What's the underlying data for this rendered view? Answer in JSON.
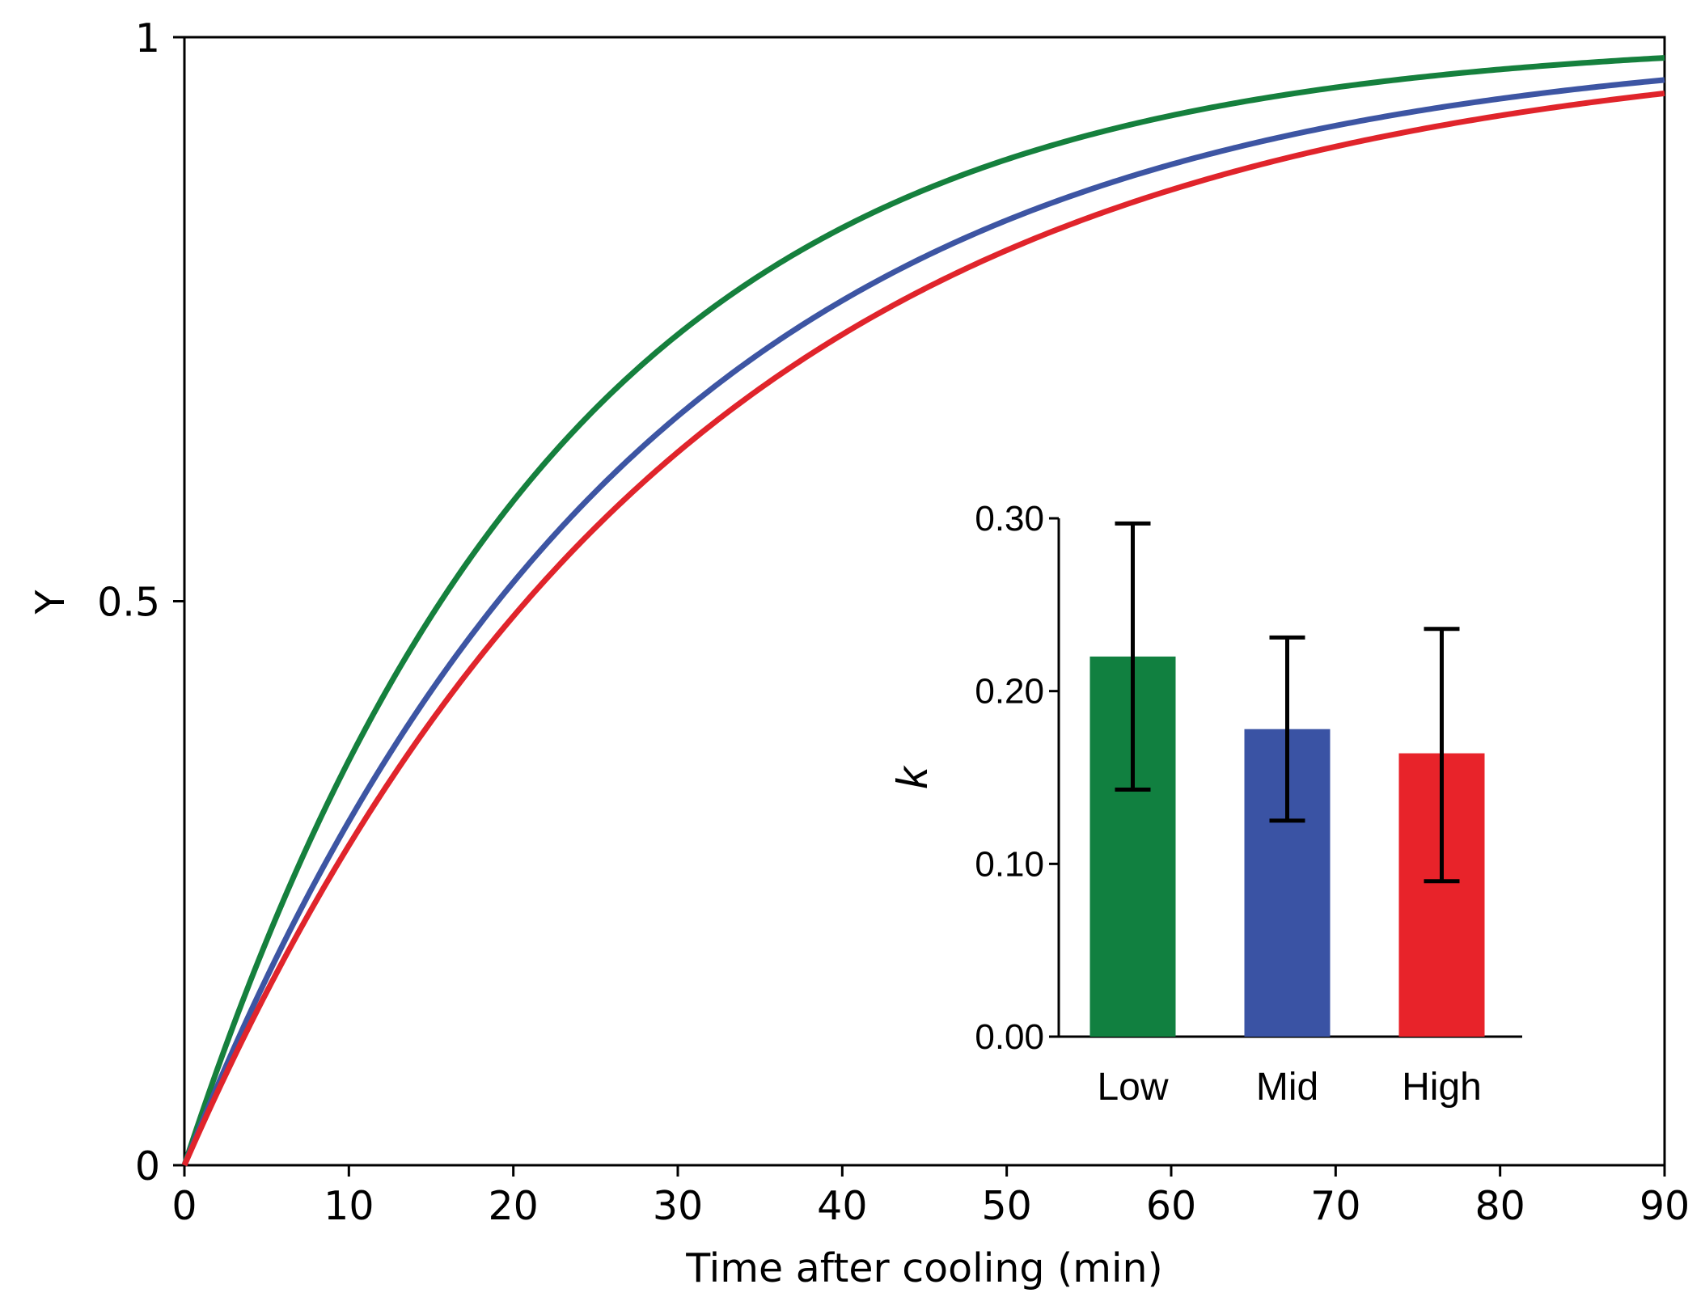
{
  "chart_data": [
    {
      "type": "line",
      "title": "",
      "xlabel": "Time after cooling (min)",
      "ylabel": "Y",
      "xlim": [
        0,
        90
      ],
      "ylim": [
        0,
        1
      ],
      "x_ticks": [
        0,
        10,
        20,
        30,
        40,
        50,
        60,
        70,
        80,
        90
      ],
      "x_tick_labels": [
        "0",
        "10",
        "20",
        "30",
        "40",
        "50",
        "60",
        "70",
        "80",
        "90"
      ],
      "y_ticks": [
        0,
        0.5,
        1
      ],
      "y_tick_labels": [
        "0",
        "0.5",
        "1"
      ],
      "grid": false,
      "model": "1 - exp(-t / tau)",
      "series": [
        {
          "name": "Low",
          "color": "#15803d",
          "tau_min": 22.5
        },
        {
          "name": "Mid",
          "color": "#3d55a3",
          "tau_min": 27.5
        },
        {
          "name": "High",
          "color": "#e0242b",
          "tau_min": 30.0
        }
      ]
    },
    {
      "type": "bar",
      "title": "",
      "xlabel": "",
      "ylabel": "k",
      "ylim": [
        0,
        0.3
      ],
      "y_ticks": [
        0,
        0.1,
        0.2,
        0.3
      ],
      "y_tick_labels": [
        "0.00",
        "0.10",
        "0.20",
        "0.30"
      ],
      "grid": false,
      "categories": [
        "Low",
        "Mid",
        "High"
      ],
      "values": [
        0.22,
        0.178,
        0.164
      ],
      "error_low": [
        0.143,
        0.125,
        0.09
      ],
      "error_high": [
        0.297,
        0.231,
        0.236
      ],
      "colors": [
        "#118040",
        "#3a53a4",
        "#e8232a"
      ]
    }
  ]
}
